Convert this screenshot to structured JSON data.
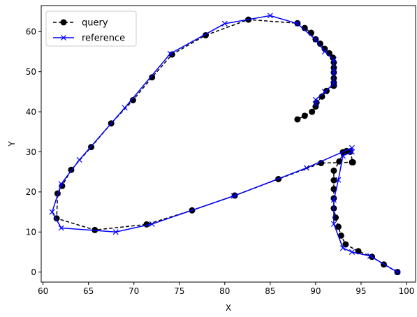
{
  "chart_data": {
    "type": "line",
    "title": "",
    "xlabel": "X",
    "ylabel": "Y",
    "xlim": [
      59.8,
      101
    ],
    "ylim": [
      -2.5,
      66.5
    ],
    "xticks": [
      60,
      65,
      70,
      75,
      80,
      85,
      90,
      95,
      100
    ],
    "yticks": [
      0,
      10,
      20,
      30,
      40,
      50,
      60
    ],
    "grid": false,
    "legend": "top-left",
    "series": [
      {
        "name": "query",
        "color": "#000000",
        "linestyle": "dashed",
        "marker": "circle",
        "x": [
          99,
          97.5,
          96.2,
          94.7,
          93.3,
          92.8,
          92.5,
          92.2,
          92,
          92,
          92,
          92,
          92,
          92.6,
          93,
          93.4,
          93.8,
          94.1,
          94,
          90.6,
          85.9,
          81.1,
          76.4,
          71.4,
          65.7,
          61.5,
          61.6,
          62.1,
          63.1,
          65.3,
          67.5,
          69.9,
          72,
          74.2,
          77.9,
          82.6,
          88,
          88.8,
          89.5,
          90,
          90.5,
          91,
          91.5,
          91.9,
          92,
          92,
          92,
          92,
          92,
          92,
          92,
          91.2,
          90.7,
          90.1,
          90,
          89.6,
          88.8,
          88
        ],
        "y": [
          0,
          1.9,
          3.8,
          5.2,
          6.9,
          9.1,
          11.3,
          13.6,
          15.9,
          18.4,
          20.7,
          22.9,
          25.3,
          27.6,
          29.9,
          30.2,
          30,
          27.4,
          27.4,
          27.2,
          23.2,
          19.1,
          15.4,
          11.9,
          10.5,
          13.4,
          19.6,
          21.5,
          25.5,
          31.2,
          37.1,
          42.9,
          48.6,
          54.3,
          59.1,
          63.0,
          62.1,
          60.9,
          59.7,
          58.1,
          57.0,
          55.7,
          54.6,
          53.5,
          52.3,
          51.0,
          49.8,
          48.4,
          47.3,
          46.5,
          46.5,
          45.2,
          43.8,
          42.3,
          41.3,
          40.0,
          39.0,
          38.1
        ]
      },
      {
        "name": "reference",
        "color": "#0000ff",
        "linestyle": "solid",
        "marker": "x",
        "x": [
          99,
          96,
          94,
          93,
          92,
          92,
          92.5,
          93,
          94,
          94,
          89,
          81,
          72,
          68,
          62,
          61,
          62,
          64,
          69,
          74,
          80,
          85,
          88,
          90,
          91,
          92,
          92,
          92,
          91,
          90,
          90
        ],
        "y": [
          0,
          4,
          5,
          6,
          12,
          18,
          23,
          29,
          30,
          31,
          26,
          19,
          12,
          10,
          11,
          15,
          22,
          28,
          41,
          54.5,
          62,
          64,
          62,
          58,
          55,
          53,
          50,
          47,
          45,
          43,
          42
        ]
      }
    ]
  }
}
